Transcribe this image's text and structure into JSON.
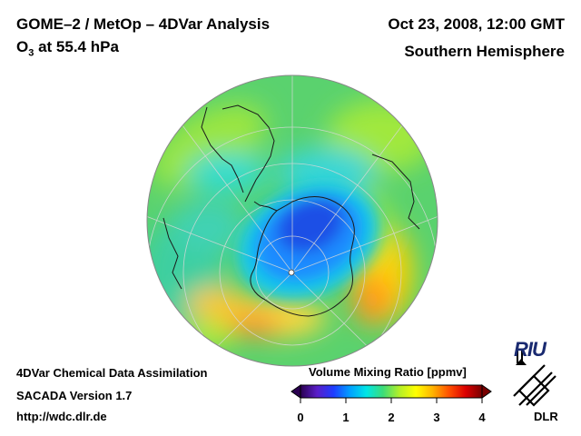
{
  "header": {
    "title": "GOME–2 / MetOp – 4DVar Analysis",
    "subtitle_prefix": "O",
    "subtitle_sub": "3",
    "subtitle_rest": " at 55.4 hPa",
    "date": "Oct 23, 2008, 12:00 GMT",
    "region": "Southern Hemisphere"
  },
  "footer": {
    "line1": "4DVar Chemical Data Assimilation",
    "line2": "SACADA Version 1.7",
    "line3": "http://wdc.dlr.de"
  },
  "colorbar": {
    "title": "Volume Mixing Ratio [ppmv]",
    "ticks": [
      "0",
      "1",
      "2",
      "3",
      "4"
    ],
    "tick_values": [
      0,
      1,
      2,
      3,
      4
    ],
    "range": [
      0,
      4
    ],
    "colors": [
      "#2a0050",
      "#5a1ec8",
      "#1e3cff",
      "#00a0ff",
      "#00e6e6",
      "#3cdc78",
      "#b4f028",
      "#ffff00",
      "#ffb400",
      "#ff5000",
      "#dc0000",
      "#780000"
    ]
  },
  "logos": {
    "riu": "RIU",
    "dlr": "DLR"
  },
  "map": {
    "projection": "orthographic-south-polar",
    "background_level_color": "#5ad26e",
    "ozone_hole_color": "#1e64ff"
  }
}
